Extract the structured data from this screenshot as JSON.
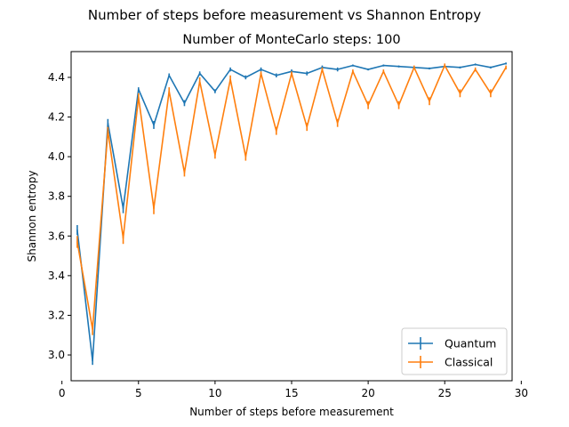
{
  "chart_data": {
    "type": "line",
    "suptitle": "Number of steps before measurement vs Shannon Entropy",
    "title": "Number of MonteCarlo steps: 100",
    "xlabel": "Number of steps before measurement",
    "ylabel": "Shannon entropy",
    "xlim": [
      0.6,
      29.4
    ],
    "ylim": [
      2.87,
      4.53
    ],
    "xticks": [
      0,
      5,
      10,
      15,
      20,
      25,
      30
    ],
    "yticks": [
      3.0,
      3.2,
      3.4,
      3.6,
      3.8,
      4.0,
      4.2,
      4.4
    ],
    "xtick_labels": [
      "0",
      "5",
      "10",
      "15",
      "20",
      "25",
      "30"
    ],
    "ytick_labels": [
      "3.0",
      "3.2",
      "3.4",
      "3.6",
      "3.8",
      "4.0",
      "4.2",
      "4.4"
    ],
    "legend": {
      "placement": "lower-right"
    },
    "x": [
      1,
      2,
      3,
      4,
      5,
      6,
      7,
      8,
      9,
      10,
      11,
      12,
      13,
      14,
      15,
      16,
      17,
      18,
      19,
      20,
      21,
      22,
      23,
      24,
      25,
      26,
      27,
      28,
      29
    ],
    "series": [
      {
        "name": "Quantum",
        "color": "#1f77b4",
        "values": [
          3.63,
          2.97,
          4.17,
          3.74,
          4.34,
          4.16,
          4.41,
          4.27,
          4.42,
          4.33,
          4.44,
          4.4,
          4.44,
          4.41,
          4.43,
          4.42,
          4.45,
          4.44,
          4.46,
          4.44,
          4.46,
          4.455,
          4.45,
          4.445,
          4.455,
          4.45,
          4.465,
          4.45,
          4.47
        ],
        "errors": [
          0.025,
          0.02,
          0.02,
          0.025,
          0.01,
          0.02,
          0.01,
          0.015,
          0.01,
          0.01,
          0.01,
          0.01,
          0.01,
          0.01,
          0.01,
          0.01,
          0.01,
          0.01,
          0.005,
          0.005,
          0.005,
          0.005,
          0.005,
          0.005,
          0.005,
          0.005,
          0.005,
          0.005,
          0.005
        ]
      },
      {
        "name": "Classical",
        "color": "#ff7f0e",
        "values": [
          3.57,
          3.13,
          4.13,
          3.59,
          4.3,
          3.74,
          4.33,
          3.92,
          4.38,
          4.01,
          4.39,
          4.0,
          4.42,
          4.13,
          4.42,
          4.15,
          4.44,
          4.17,
          4.43,
          4.26,
          4.43,
          4.26,
          4.45,
          4.28,
          4.46,
          4.32,
          4.44,
          4.32,
          4.45
        ],
        "errors": [
          0.03,
          0.03,
          0.02,
          0.03,
          0.02,
          0.03,
          0.02,
          0.02,
          0.02,
          0.02,
          0.02,
          0.02,
          0.01,
          0.02,
          0.01,
          0.02,
          0.01,
          0.02,
          0.01,
          0.02,
          0.01,
          0.02,
          0.01,
          0.02,
          0.01,
          0.02,
          0.01,
          0.02,
          0.01
        ]
      }
    ]
  }
}
